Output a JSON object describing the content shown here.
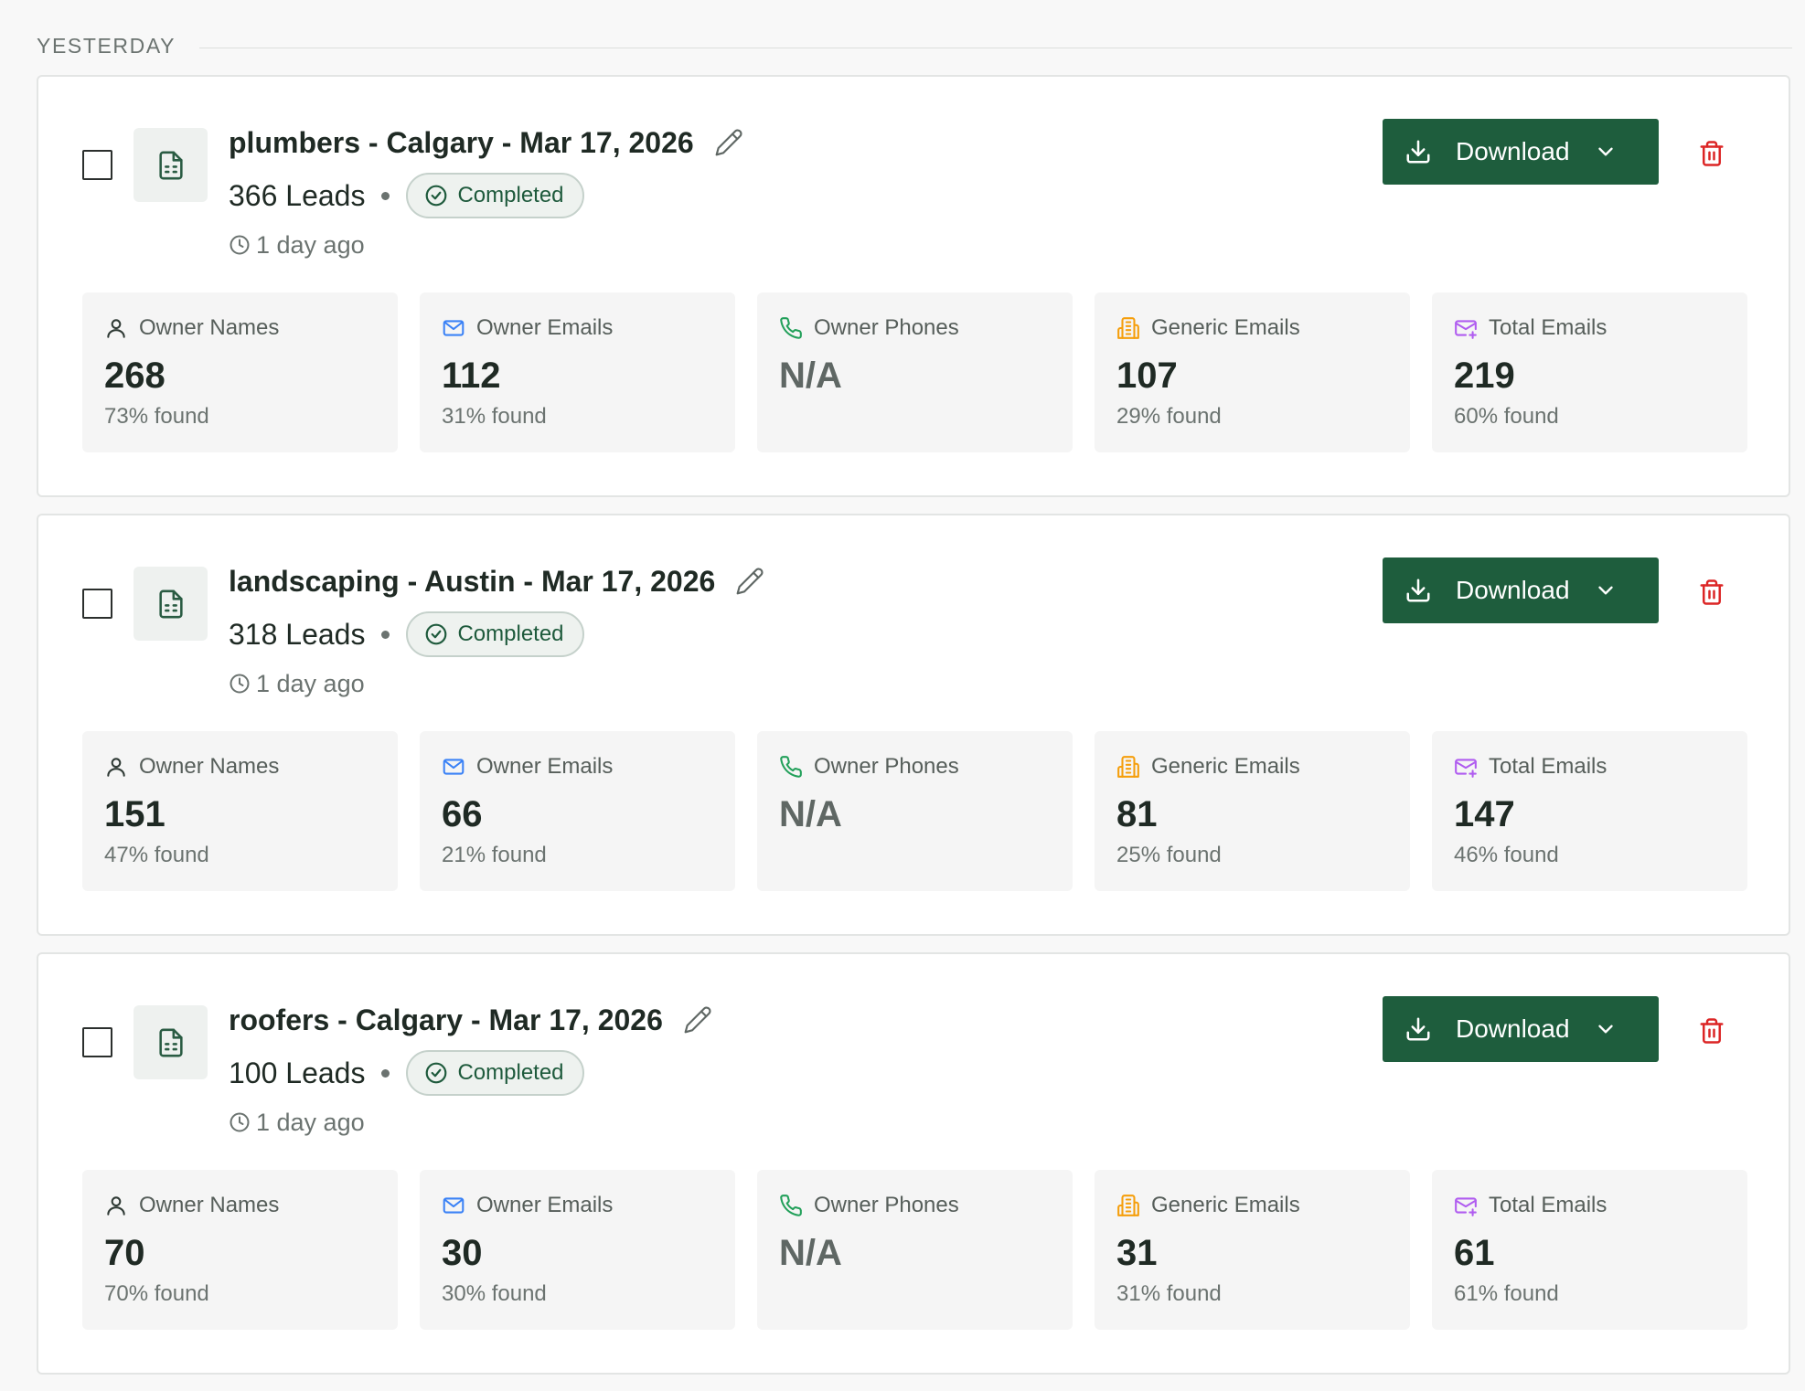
{
  "section": {
    "label": "YESTERDAY"
  },
  "download_label": "Download",
  "colors": {
    "accent": "#1e5d3d",
    "danger": "#dc2626",
    "names": "#2f3a35",
    "emails": "#3b82f6",
    "phones": "#22a05a",
    "generic": "#f59e0b",
    "total": "#b05cf0"
  },
  "icons": {
    "file": "file-spreadsheet-icon",
    "edit": "pencil-icon",
    "status": "check-circle-icon",
    "time": "clock-icon",
    "download": "download-icon",
    "chevron": "chevron-down-icon",
    "delete": "trash-icon",
    "names": "user-icon",
    "emails": "mail-icon",
    "phones": "phone-icon",
    "generic": "building-icon",
    "total": "mail-plus-icon"
  },
  "lists": [
    {
      "title": "plumbers - Calgary - Mar 17, 2026",
      "leads": "366 Leads",
      "status": "Completed",
      "time": "1 day ago",
      "stats": [
        {
          "label": "Owner Names",
          "value": "268",
          "sub": "73% found"
        },
        {
          "label": "Owner Emails",
          "value": "112",
          "sub": "31% found"
        },
        {
          "label": "Owner Phones",
          "value": "N/A",
          "sub": ""
        },
        {
          "label": "Generic Emails",
          "value": "107",
          "sub": "29% found"
        },
        {
          "label": "Total Emails",
          "value": "219",
          "sub": "60% found"
        }
      ]
    },
    {
      "title": "landscaping - Austin - Mar 17, 2026",
      "leads": "318 Leads",
      "status": "Completed",
      "time": "1 day ago",
      "stats": [
        {
          "label": "Owner Names",
          "value": "151",
          "sub": "47% found"
        },
        {
          "label": "Owner Emails",
          "value": "66",
          "sub": "21% found"
        },
        {
          "label": "Owner Phones",
          "value": "N/A",
          "sub": ""
        },
        {
          "label": "Generic Emails",
          "value": "81",
          "sub": "25% found"
        },
        {
          "label": "Total Emails",
          "value": "147",
          "sub": "46% found"
        }
      ]
    },
    {
      "title": "roofers - Calgary - Mar 17, 2026",
      "leads": "100 Leads",
      "status": "Completed",
      "time": "1 day ago",
      "stats": [
        {
          "label": "Owner Names",
          "value": "70",
          "sub": "70% found"
        },
        {
          "label": "Owner Emails",
          "value": "30",
          "sub": "30% found"
        },
        {
          "label": "Owner Phones",
          "value": "N/A",
          "sub": ""
        },
        {
          "label": "Generic Emails",
          "value": "31",
          "sub": "31% found"
        },
        {
          "label": "Total Emails",
          "value": "61",
          "sub": "61% found"
        }
      ]
    }
  ]
}
